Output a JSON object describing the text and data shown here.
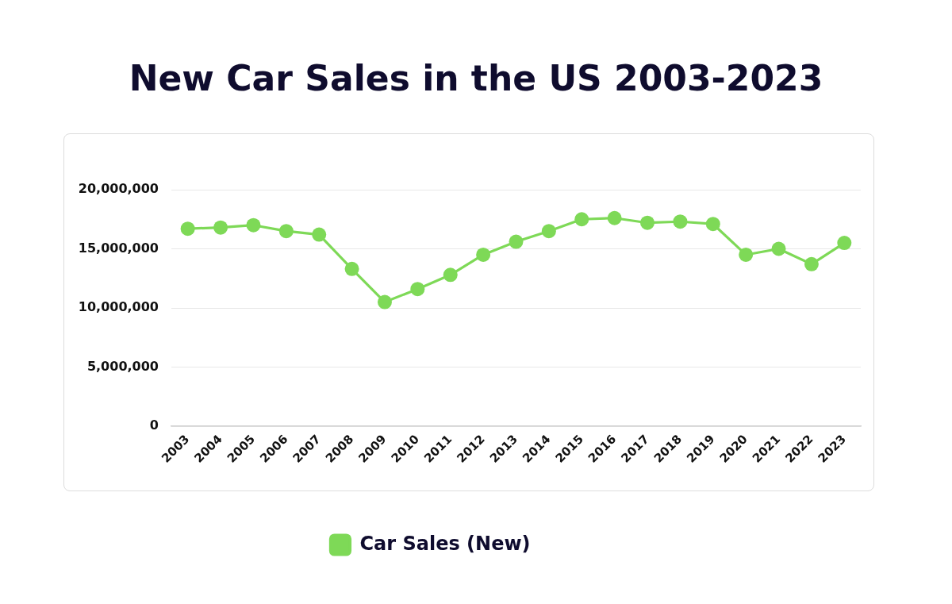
{
  "chart_data": {
    "type": "line",
    "title": "New Car Sales in the US 2003-2023",
    "categories": [
      "2003",
      "2004",
      "2005",
      "2006",
      "2007",
      "2008",
      "2009",
      "2010",
      "2011",
      "2012",
      "2013",
      "2014",
      "2015",
      "2016",
      "2017",
      "2018",
      "2019",
      "2020",
      "2021",
      "2022",
      "2023"
    ],
    "series": [
      {
        "name": "Car Sales (New)",
        "color": "#7ed957",
        "values": [
          16700000,
          16800000,
          17000000,
          16500000,
          16200000,
          13300000,
          10500000,
          11600000,
          12800000,
          14500000,
          15600000,
          16500000,
          17500000,
          17600000,
          17200000,
          17300000,
          17100000,
          14500000,
          15000000,
          13700000,
          15500000
        ]
      }
    ],
    "ylim": [
      0,
      20000000
    ],
    "yticks": [
      0,
      {
        "value": 5000000,
        "label": "5,000,000"
      },
      {
        "value": 10000000,
        "label": "10,000,000"
      },
      {
        "value": 15000000,
        "label": "15,000,000"
      },
      {
        "value": 20000000,
        "label": "20,000,000"
      }
    ],
    "grid": "y",
    "legend": "bottom",
    "marker": "circle",
    "line_style": "solid"
  }
}
